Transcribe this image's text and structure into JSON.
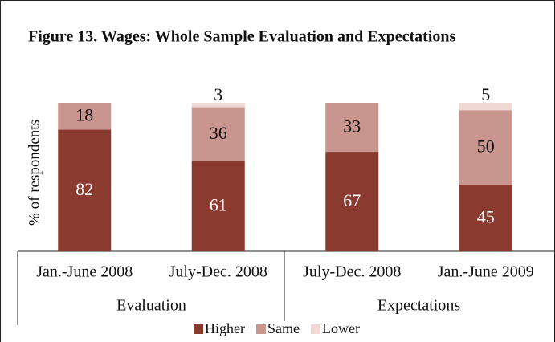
{
  "chart_data": {
    "type": "stacked_bar",
    "title": "Figure 13. Wages: Whole Sample Evaluation and Expectations",
    "ylabel": "% of respondents",
    "categories": [
      "Jan.-June 2008",
      "July-Dec. 2008",
      "July-Dec. 2008",
      "Jan.-June 2009"
    ],
    "groups": [
      "Evaluation",
      "Expectations"
    ],
    "series": [
      {
        "name": "Higher",
        "color": "#8b3a2f",
        "values": [
          82,
          61,
          67,
          45
        ]
      },
      {
        "name": "Same",
        "color": "#c9968f",
        "values": [
          18,
          36,
          33,
          50
        ]
      },
      {
        "name": "Lower",
        "color": "#f0d8d5",
        "values": [
          null,
          3,
          null,
          5
        ]
      }
    ],
    "ylim": [
      0,
      100
    ]
  }
}
